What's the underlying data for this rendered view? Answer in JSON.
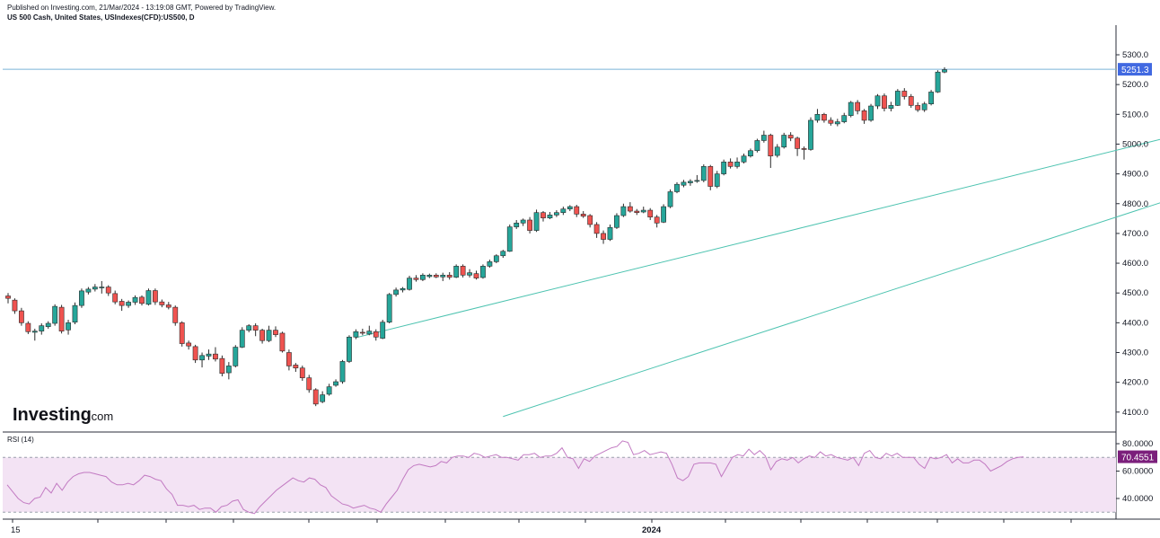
{
  "header": {
    "published": "Published on Investing.com, 21/Mar/2024 - 13:19:08 GMT, Powered by TradingView.",
    "symbol": "US 500 Cash, United States, USIndexes(CFD):US500, D"
  },
  "logo": {
    "text": "Investing",
    "suffix": ".com"
  },
  "colors": {
    "up": "#26a69a",
    "down": "#ef5350",
    "channel": "#4dc3b0",
    "price_line": "#7ab5d8",
    "price_badge": "#4169e1",
    "rsi_line": "#c27ac2",
    "rsi_band": "#f3e3f4",
    "rsi_badge": "#7b1f7b"
  },
  "chart_data": [
    {
      "type": "candlestick",
      "title": "US 500 Cash, United States, USIndexes(CFD):US500, D",
      "y_ticks": [
        "5300.0",
        "5200.0",
        "5100.0",
        "5000.0",
        "4900.0",
        "4800.0",
        "4700.0",
        "4600.0",
        "4500.0",
        "4400.0",
        "4300.0",
        "4200.0",
        "4100.0"
      ],
      "ylim": [
        4060,
        5340
      ],
      "x_tick_labels": [
        "15",
        "2024"
      ],
      "last_price": 5251.3,
      "last_price_label": "5251.3",
      "trend_channel": {
        "upper": [
          [
            52,
            4350
          ],
          [
            229,
            5330
          ]
        ],
        "lower": [
          [
            74,
            4085
          ],
          [
            230,
            5225
          ]
        ]
      },
      "candles": [
        [
          4490,
          4482,
          4500,
          4465
        ],
        [
          4476,
          4440,
          4482,
          4430
        ],
        [
          4440,
          4400,
          4450,
          4390
        ],
        [
          4398,
          4370,
          4405,
          4362
        ],
        [
          4368,
          4372,
          4380,
          4340
        ],
        [
          4372,
          4390,
          4398,
          4360
        ],
        [
          4387,
          4398,
          4405,
          4380
        ],
        [
          4398,
          4455,
          4462,
          4390
        ],
        [
          4452,
          4372,
          4460,
          4364
        ],
        [
          4376,
          4400,
          4410,
          4360
        ],
        [
          4402,
          4458,
          4468,
          4395
        ],
        [
          4458,
          4507,
          4515,
          4450
        ],
        [
          4503,
          4513,
          4520,
          4495
        ],
        [
          4513,
          4520,
          4530,
          4505
        ],
        [
          4518,
          4520,
          4540,
          4498
        ],
        [
          4520,
          4500,
          4526,
          4490
        ],
        [
          4498,
          4470,
          4508,
          4462
        ],
        [
          4472,
          4458,
          4480,
          4440
        ],
        [
          4458,
          4469,
          4475,
          4450
        ],
        [
          4469,
          4485,
          4492,
          4460
        ],
        [
          4486,
          4465,
          4492,
          4458
        ],
        [
          4462,
          4508,
          4515,
          4458
        ],
        [
          4508,
          4470,
          4515,
          4460
        ],
        [
          4470,
          4460,
          4478,
          4452
        ],
        [
          4460,
          4452,
          4470,
          4445
        ],
        [
          4452,
          4400,
          4458,
          4390
        ],
        [
          4400,
          4330,
          4405,
          4320
        ],
        [
          4332,
          4322,
          4340,
          4310
        ],
        [
          4320,
          4275,
          4326,
          4265
        ],
        [
          4275,
          4290,
          4300,
          4250
        ],
        [
          4288,
          4295,
          4310,
          4275
        ],
        [
          4295,
          4278,
          4318,
          4270
        ],
        [
          4280,
          4230,
          4290,
          4220
        ],
        [
          4232,
          4255,
          4268,
          4210
        ],
        [
          4255,
          4318,
          4325,
          4250
        ],
        [
          4318,
          4375,
          4385,
          4315
        ],
        [
          4375,
          4390,
          4395,
          4368
        ],
        [
          4390,
          4375,
          4398,
          4355
        ],
        [
          4375,
          4340,
          4380,
          4330
        ],
        [
          4340,
          4375,
          4390,
          4335
        ],
        [
          4375,
          4360,
          4388,
          4352
        ],
        [
          4365,
          4305,
          4370,
          4300
        ],
        [
          4300,
          4255,
          4310,
          4240
        ],
        [
          4258,
          4248,
          4265,
          4235
        ],
        [
          4248,
          4215,
          4256,
          4205
        ],
        [
          4215,
          4175,
          4225,
          4165
        ],
        [
          4175,
          4127,
          4180,
          4120
        ],
        [
          4135,
          4158,
          4170,
          4130
        ],
        [
          4160,
          4185,
          4195,
          4155
        ],
        [
          4190,
          4202,
          4210,
          4185
        ],
        [
          4202,
          4270,
          4275,
          4195
        ],
        [
          4270,
          4352,
          4358,
          4265
        ],
        [
          4352,
          4370,
          4378,
          4345
        ],
        [
          4368,
          4365,
          4380,
          4358
        ],
        [
          4362,
          4372,
          4390,
          4358
        ],
        [
          4370,
          4352,
          4378,
          4340
        ],
        [
          4348,
          4402,
          4410,
          4345
        ],
        [
          4402,
          4495,
          4500,
          4398
        ],
        [
          4495,
          4510,
          4518,
          4488
        ],
        [
          4510,
          4515,
          4520,
          4502
        ],
        [
          4512,
          4550,
          4558,
          4508
        ],
        [
          4550,
          4545,
          4560,
          4538
        ],
        [
          4545,
          4560,
          4566,
          4540
        ],
        [
          4555,
          4560,
          4565,
          4550
        ],
        [
          4560,
          4554,
          4566,
          4550
        ],
        [
          4554,
          4560,
          4568,
          4540
        ],
        [
          4560,
          4553,
          4570,
          4545
        ],
        [
          4553,
          4590,
          4596,
          4550
        ],
        [
          4590,
          4560,
          4596,
          4552
        ],
        [
          4560,
          4568,
          4580,
          4552
        ],
        [
          4565,
          4550,
          4575,
          4545
        ],
        [
          4552,
          4590,
          4596,
          4548
        ],
        [
          4590,
          4605,
          4612,
          4585
        ],
        [
          4605,
          4625,
          4630,
          4600
        ],
        [
          4625,
          4640,
          4645,
          4618
        ],
        [
          4640,
          4722,
          4730,
          4638
        ],
        [
          4722,
          4735,
          4745,
          4715
        ],
        [
          4735,
          4745,
          4750,
          4725
        ],
        [
          4745,
          4710,
          4755,
          4700
        ],
        [
          4710,
          4770,
          4780,
          4705
        ],
        [
          4770,
          4752,
          4775,
          4740
        ],
        [
          4752,
          4762,
          4772,
          4748
        ],
        [
          4762,
          4770,
          4778,
          4755
        ],
        [
          4770,
          4782,
          4790,
          4762
        ],
        [
          4782,
          4790,
          4795,
          4775
        ],
        [
          4790,
          4765,
          4796,
          4755
        ],
        [
          4765,
          4758,
          4775,
          4752
        ],
        [
          4760,
          4730,
          4765,
          4720
        ],
        [
          4730,
          4700,
          4738,
          4685
        ],
        [
          4700,
          4680,
          4710,
          4665
        ],
        [
          4680,
          4720,
          4730,
          4675
        ],
        [
          4720,
          4760,
          4768,
          4715
        ],
        [
          4760,
          4790,
          4800,
          4755
        ],
        [
          4790,
          4775,
          4805,
          4770
        ],
        [
          4775,
          4770,
          4782,
          4762
        ],
        [
          4772,
          4778,
          4790,
          4768
        ],
        [
          4778,
          4755,
          4785,
          4745
        ],
        [
          4755,
          4735,
          4762,
          4720
        ],
        [
          4738,
          4790,
          4798,
          4735
        ],
        [
          4790,
          4840,
          4848,
          4785
        ],
        [
          4840,
          4865,
          4872,
          4835
        ],
        [
          4862,
          4872,
          4880,
          4855
        ],
        [
          4870,
          4875,
          4882,
          4860
        ],
        [
          4875,
          4878,
          4896,
          4870
        ],
        [
          4878,
          4925,
          4932,
          4872
        ],
        [
          4925,
          4858,
          4930,
          4845
        ],
        [
          4858,
          4900,
          4910,
          4852
        ],
        [
          4900,
          4940,
          4948,
          4895
        ],
        [
          4940,
          4925,
          4952,
          4918
        ],
        [
          4925,
          4940,
          4955,
          4918
        ],
        [
          4940,
          4960,
          4968,
          4935
        ],
        [
          4960,
          4978,
          4985,
          4955
        ],
        [
          4978,
          5012,
          5018,
          4972
        ],
        [
          5012,
          5030,
          5045,
          5005
        ],
        [
          5030,
          4960,
          5035,
          4920
        ],
        [
          4962,
          4990,
          5000,
          4955
        ],
        [
          4990,
          5030,
          5038,
          4985
        ],
        [
          5030,
          5020,
          5040,
          5010
        ],
        [
          5020,
          4985,
          5025,
          4960
        ],
        [
          4985,
          4982,
          4992,
          4948
        ],
        [
          4982,
          5080,
          5090,
          4978
        ],
        [
          5080,
          5100,
          5118,
          5072
        ],
        [
          5100,
          5080,
          5105,
          5072
        ],
        [
          5080,
          5070,
          5090,
          5062
        ],
        [
          5068,
          5075,
          5085,
          5060
        ],
        [
          5075,
          5096,
          5105,
          5070
        ],
        [
          5096,
          5140,
          5145,
          5090
        ],
        [
          5140,
          5112,
          5148,
          5100
        ],
        [
          5112,
          5080,
          5118,
          5068
        ],
        [
          5080,
          5128,
          5135,
          5075
        ],
        [
          5128,
          5162,
          5168,
          5118
        ],
        [
          5162,
          5120,
          5170,
          5110
        ],
        [
          5120,
          5130,
          5142,
          5110
        ],
        [
          5130,
          5178,
          5185,
          5128
        ],
        [
          5178,
          5160,
          5188,
          5150
        ],
        [
          5160,
          5130,
          5168,
          5122
        ],
        [
          5130,
          5115,
          5140,
          5108
        ],
        [
          5115,
          5135,
          5142,
          5108
        ],
        [
          5135,
          5175,
          5182,
          5130
        ],
        [
          5175,
          5242,
          5248,
          5172
        ],
        [
          5242,
          5250,
          5258,
          5238
        ]
      ]
    },
    {
      "type": "line",
      "title": "RSI (14)",
      "y_ticks": [
        "80.0000",
        "60.0000",
        "40.0000"
      ],
      "ylim": [
        25,
        88
      ],
      "band": [
        30,
        70
      ],
      "last_value": 70.4551,
      "last_value_label": "70.4551",
      "values": [
        50,
        45,
        40,
        37,
        36,
        40,
        41,
        48,
        44,
        51,
        46,
        52,
        56,
        58,
        59,
        59,
        58,
        57,
        56,
        52,
        50,
        50,
        51,
        50,
        53,
        57,
        56,
        54,
        53,
        47,
        43,
        35,
        35,
        34,
        35,
        32,
        33,
        33,
        30,
        34,
        35,
        38,
        39,
        32,
        30,
        29,
        34,
        38,
        42,
        46,
        49,
        52,
        55,
        53,
        52,
        55,
        54,
        50,
        48,
        42,
        39,
        36,
        35,
        33,
        34,
        35,
        33,
        32,
        30,
        36,
        41,
        46,
        54,
        61,
        64,
        65,
        64,
        63,
        64,
        67,
        66,
        70,
        71,
        71,
        70,
        73,
        72,
        70,
        71,
        72,
        70,
        70,
        69,
        68,
        72,
        72,
        73,
        70,
        71,
        71,
        73,
        77,
        70,
        69,
        62,
        69,
        67,
        71,
        73,
        75,
        77,
        78,
        82,
        81,
        72,
        73,
        75,
        72,
        73,
        74,
        73,
        65,
        55,
        53,
        56,
        65,
        66,
        66,
        66,
        65,
        56,
        63,
        70,
        72,
        71,
        76,
        72,
        75,
        71,
        61,
        67,
        69,
        68,
        70,
        66,
        69,
        71,
        70,
        74,
        71,
        72,
        70,
        69,
        68,
        70,
        64,
        73,
        75,
        70,
        69,
        73,
        71,
        73,
        70,
        70,
        70,
        65,
        62,
        70,
        69,
        70,
        72,
        66,
        69,
        66,
        66,
        68,
        68,
        65,
        60,
        62,
        64,
        67,
        69,
        70,
        70.4551
      ]
    }
  ]
}
